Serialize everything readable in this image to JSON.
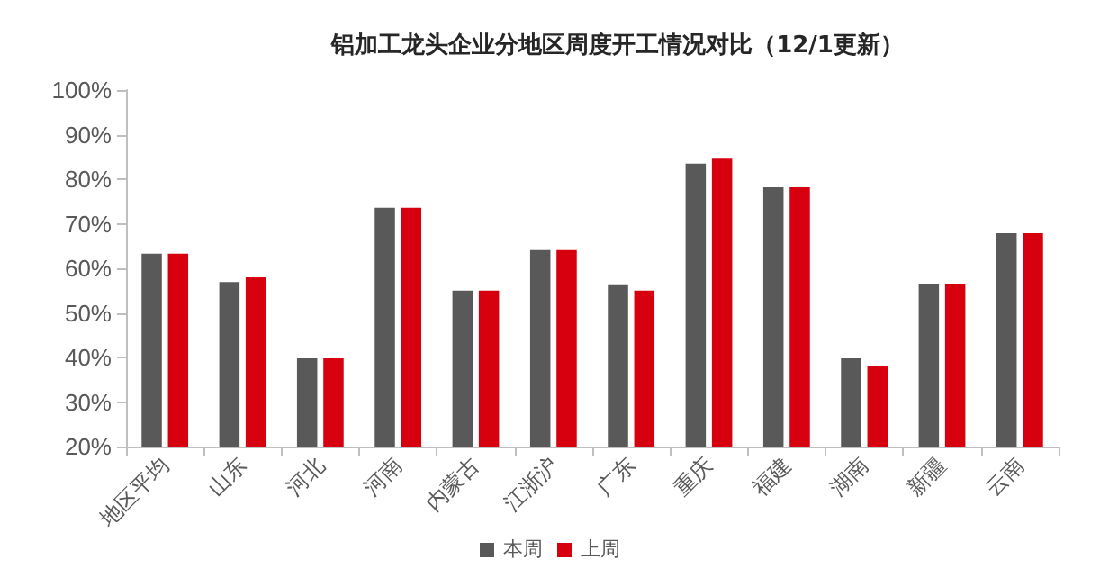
{
  "chart_data": {
    "type": "bar",
    "title": "铝加工龙头企业分地区周度开工情况对比（12/1更新）",
    "categories": [
      "地区平均",
      "山东",
      "河北",
      "河南",
      "内蒙古",
      "江浙沪",
      "广东",
      "重庆",
      "福建",
      "湖南",
      "新疆",
      "云南"
    ],
    "series": [
      {
        "name": "本周",
        "color": "#595959",
        "values": [
          63.3,
          56.9,
          39.8,
          73.6,
          55.0,
          64.1,
          56.2,
          83.5,
          78.2,
          39.8,
          56.5,
          67.9
        ]
      },
      {
        "name": "上周",
        "color": "#d7000f",
        "values": [
          63.3,
          58.0,
          39.8,
          73.6,
          55.0,
          64.1,
          55.0,
          84.6,
          78.2,
          38.0,
          56.5,
          67.9
        ]
      }
    ],
    "ylim": [
      20,
      100
    ],
    "yticks": [
      {
        "value": 20,
        "label": "20%"
      },
      {
        "value": 30,
        "label": "30%"
      },
      {
        "value": 40,
        "label": "40%"
      },
      {
        "value": 50,
        "label": "50%"
      },
      {
        "value": 60,
        "label": "60%"
      },
      {
        "value": 70,
        "label": "70%"
      },
      {
        "value": 80,
        "label": "80%"
      },
      {
        "value": 90,
        "label": "90%"
      },
      {
        "value": 100,
        "label": "100%"
      }
    ],
    "grid": false,
    "legend": "bottom"
  }
}
